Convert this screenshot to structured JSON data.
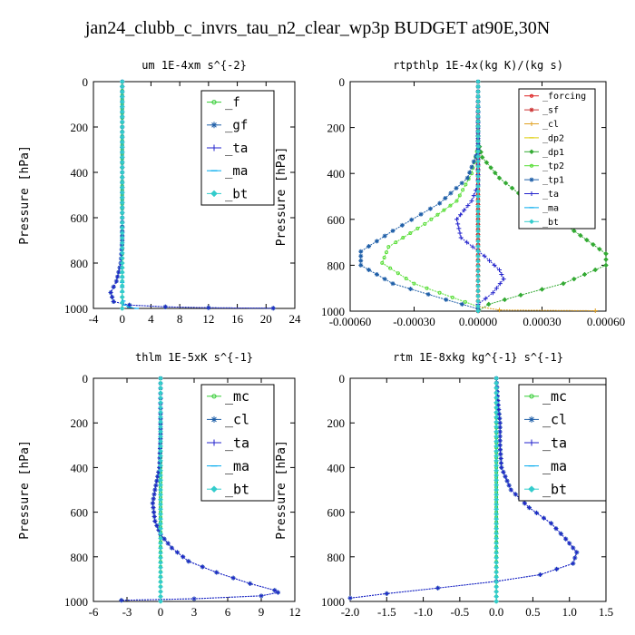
{
  "page": {
    "title": "jan24_clubb_c_invrs_tau_n2_clear_wp3p  BUDGET at90E,30N"
  },
  "chart_data": [
    {
      "type": "line",
      "title": "um  1E-4xm s^{-2}",
      "ylabel": "Pressure [hPa]",
      "xlim": [
        -4,
        24
      ],
      "ylim": [
        1000,
        0
      ],
      "x_ticks": [
        "-4",
        "0",
        "4",
        "8",
        "12",
        "16",
        "20",
        "24"
      ],
      "y_ticks": [
        "0",
        "200",
        "400",
        "600",
        "800",
        "1000"
      ],
      "grid": false,
      "legend_position": "top-right",
      "series": [
        {
          "name": "_f",
          "color": "#33cc33",
          "points": [
            [
              0,
              0
            ],
            [
              0,
              100
            ],
            [
              0,
              200
            ],
            [
              0,
              300
            ],
            [
              0,
              400
            ],
            [
              0,
              500
            ],
            [
              0,
              600
            ],
            [
              0,
              700
            ],
            [
              0,
              800
            ],
            [
              0,
              900
            ],
            [
              0,
              950
            ],
            [
              0,
              1000
            ]
          ]
        },
        {
          "name": "_gf",
          "color": "#1f5fa8",
          "points": [
            [
              0,
              0
            ],
            [
              0,
              200
            ],
            [
              0,
              400
            ],
            [
              0,
              600
            ],
            [
              0,
              700
            ],
            [
              -0.2,
              800
            ],
            [
              -0.8,
              880
            ],
            [
              -1.6,
              930
            ],
            [
              -1.2,
              970
            ],
            [
              1,
              985
            ],
            [
              6,
              993
            ],
            [
              12,
              997
            ],
            [
              21,
              999
            ]
          ]
        },
        {
          "name": "_ta",
          "color": "#2222cc",
          "points": [
            [
              0,
              0
            ],
            [
              0,
              200
            ],
            [
              0,
              400
            ],
            [
              0,
              600
            ],
            [
              0,
              700
            ],
            [
              -0.2,
              800
            ],
            [
              -0.8,
              880
            ],
            [
              -1.6,
              930
            ],
            [
              -1.2,
              970
            ],
            [
              1,
              985
            ],
            [
              6,
              993
            ],
            [
              12,
              997
            ],
            [
              21,
              999
            ]
          ]
        },
        {
          "name": "_ma",
          "color": "#00aaee",
          "points": [
            [
              0,
              0
            ],
            [
              0,
              200
            ],
            [
              0,
              400
            ],
            [
              0,
              600
            ],
            [
              0,
              800
            ],
            [
              0,
              950
            ],
            [
              0.3,
              985
            ],
            [
              1,
              995
            ],
            [
              2,
              1000
            ]
          ]
        },
        {
          "name": "_bt",
          "color": "#33cccc",
          "points": [
            [
              0,
              0
            ],
            [
              0,
              200
            ],
            [
              0,
              400
            ],
            [
              0,
              600
            ],
            [
              0,
              800
            ],
            [
              0,
              900
            ],
            [
              0,
              950
            ],
            [
              0,
              1000
            ]
          ]
        }
      ]
    },
    {
      "type": "line",
      "title": "rtpthlp  1E-4x(kg K)/(kg s)",
      "ylabel": "Pressure [hPa]",
      "xlim": [
        -0.0006,
        0.0006
      ],
      "ylim": [
        1000,
        0
      ],
      "x_ticks": [
        "-0.00060",
        "-0.00030",
        "0.00000",
        "0.00030",
        "0.00060"
      ],
      "y_ticks": [
        "0",
        "200",
        "400",
        "600",
        "800",
        "1000"
      ],
      "grid": false,
      "legend_position": "top-right",
      "series": [
        {
          "name": "_forcing",
          "color": "#dd2222",
          "points": [
            [
              0,
              0
            ],
            [
              0,
              200
            ],
            [
              0,
              400
            ],
            [
              0,
              600
            ],
            [
              0,
              800
            ],
            [
              0,
              1000
            ]
          ]
        },
        {
          "name": "_sf",
          "color": "#cc3333",
          "points": [
            [
              0,
              0
            ],
            [
              0,
              300
            ],
            [
              0,
              600
            ],
            [
              0,
              1000
            ]
          ]
        },
        {
          "name": "_cl",
          "color": "#e0a020",
          "points": [
            [
              0,
              0
            ],
            [
              0,
              500
            ],
            [
              0,
              980
            ],
            [
              0.0001,
              995
            ],
            [
              0.00055,
              998
            ]
          ]
        },
        {
          "name": "_dp2",
          "color": "#ddcc00",
          "points": [
            [
              0,
              0
            ],
            [
              0,
              500
            ],
            [
              0,
              1000
            ]
          ]
        },
        {
          "name": "_dp1",
          "color": "#33aa33",
          "points": [
            [
              0,
              0
            ],
            [
              0,
              260
            ],
            [
              2e-05,
              330
            ],
            [
              0.0001,
              420
            ],
            [
              0.00025,
              530
            ],
            [
              0.00045,
              650
            ],
            [
              0.0006,
              750
            ],
            [
              0.0006,
              800
            ],
            [
              0.0004,
              880
            ],
            [
              0.0002,
              930
            ],
            [
              5e-05,
              970
            ],
            [
              0,
              1000
            ]
          ]
        },
        {
          "name": "_tp2",
          "color": "#55dd33",
          "points": [
            [
              0,
              0
            ],
            [
              0,
              280
            ],
            [
              -3e-05,
              400
            ],
            [
              -0.0001,
              520
            ],
            [
              -0.00025,
              620
            ],
            [
              -0.00042,
              720
            ],
            [
              -0.00045,
              790
            ],
            [
              -0.0003,
              880
            ],
            [
              -0.00012,
              940
            ],
            [
              0,
              980
            ]
          ]
        },
        {
          "name": "_tp1",
          "color": "#1f5fa8",
          "points": [
            [
              0,
              0
            ],
            [
              0,
              300
            ],
            [
              -5e-05,
              420
            ],
            [
              -0.00018,
              530
            ],
            [
              -0.0004,
              650
            ],
            [
              -0.00055,
              740
            ],
            [
              -0.00055,
              800
            ],
            [
              -0.0004,
              880
            ],
            [
              -0.00015,
              950
            ],
            [
              0,
              990
            ]
          ]
        },
        {
          "name": "_ta",
          "color": "#2222cc",
          "points": [
            [
              0,
              0
            ],
            [
              0,
              450
            ],
            [
              -3e-05,
              520
            ],
            [
              -0.0001,
              600
            ],
            [
              -8e-05,
              680
            ],
            [
              3e-05,
              760
            ],
            [
              0.0001,
              820
            ],
            [
              0.00012,
              860
            ],
            [
              7e-05,
              920
            ],
            [
              0,
              970
            ]
          ]
        },
        {
          "name": "_ma",
          "color": "#00aaee",
          "points": [
            [
              0,
              0
            ],
            [
              0,
              500
            ],
            [
              0,
              1000
            ]
          ]
        },
        {
          "name": "_bt",
          "color": "#33cccc",
          "points": [
            [
              0,
              0
            ],
            [
              0,
              500
            ],
            [
              0,
              1000
            ]
          ]
        }
      ]
    },
    {
      "type": "line",
      "title": "thlm  1E-5xK s^{-1}",
      "ylabel": "Pressure [hPa]",
      "xlim": [
        -6,
        12
      ],
      "ylim": [
        1000,
        0
      ],
      "x_ticks": [
        "-6",
        "-3",
        "0",
        "3",
        "6",
        "9",
        "12"
      ],
      "y_ticks": [
        "0",
        "200",
        "400",
        "600",
        "800",
        "1000"
      ],
      "grid": false,
      "legend_position": "top-right",
      "series": [
        {
          "name": "_mc",
          "color": "#33cc33",
          "points": [
            [
              0,
              0
            ],
            [
              0,
              200
            ],
            [
              0,
              400
            ],
            [
              0,
              600
            ],
            [
              0,
              800
            ],
            [
              0,
              1000
            ]
          ]
        },
        {
          "name": "_cl",
          "color": "#1f5fa8",
          "points": [
            [
              0,
              0
            ],
            [
              0,
              250
            ],
            [
              -0.1,
              400
            ],
            [
              -0.5,
              500
            ],
            [
              -0.7,
              560
            ],
            [
              -0.5,
              640
            ],
            [
              0,
              700
            ],
            [
              1,
              760
            ],
            [
              2.5,
              820
            ],
            [
              5,
              870
            ],
            [
              8,
              920
            ],
            [
              10.2,
              950
            ],
            [
              10.5,
              960
            ],
            [
              9,
              975
            ],
            [
              3,
              988
            ],
            [
              -3.5,
              995
            ]
          ]
        },
        {
          "name": "_ta",
          "color": "#2222cc",
          "points": [
            [
              0,
              0
            ],
            [
              0,
              250
            ],
            [
              -0.1,
              400
            ],
            [
              -0.5,
              500
            ],
            [
              -0.7,
              560
            ],
            [
              -0.5,
              640
            ],
            [
              0,
              700
            ],
            [
              1,
              760
            ],
            [
              2.5,
              820
            ],
            [
              5,
              870
            ],
            [
              8,
              920
            ],
            [
              10.2,
              950
            ],
            [
              10.5,
              960
            ],
            [
              9,
              975
            ],
            [
              3,
              988
            ],
            [
              -3.5,
              995
            ]
          ]
        },
        {
          "name": "_ma",
          "color": "#00aaee",
          "points": [
            [
              0,
              0
            ],
            [
              0,
              500
            ],
            [
              0,
              1000
            ]
          ]
        },
        {
          "name": "_bt",
          "color": "#33cccc",
          "points": [
            [
              0,
              0
            ],
            [
              0,
              500
            ],
            [
              0,
              1000
            ]
          ]
        }
      ]
    },
    {
      "type": "line",
      "title": "rtm  1E-8xkg kg^{-1} s^{-1}",
      "ylabel": "Pressure [hPa]",
      "xlim": [
        -2.0,
        1.5
      ],
      "ylim": [
        1000,
        0
      ],
      "x_ticks": [
        "-2.0",
        "-1.5",
        "-1.0",
        "-0.5",
        "0.0",
        "0.5",
        "1.0",
        "1.5"
      ],
      "y_ticks": [
        "0",
        "200",
        "400",
        "600",
        "800",
        "1000"
      ],
      "grid": false,
      "legend_position": "top-right",
      "series": [
        {
          "name": "_mc",
          "color": "#33cc33",
          "points": [
            [
              0,
              0
            ],
            [
              0,
              200
            ],
            [
              0,
              400
            ],
            [
              0,
              600
            ],
            [
              0,
              800
            ],
            [
              0,
              1000
            ]
          ]
        },
        {
          "name": "_cl",
          "color": "#1f5fa8",
          "points": [
            [
              0,
              0
            ],
            [
              0.02,
              100
            ],
            [
              0.05,
              200
            ],
            [
              0.05,
              300
            ],
            [
              0.07,
              400
            ],
            [
              0.2,
              500
            ],
            [
              0.45,
              580
            ],
            [
              0.75,
              650
            ],
            [
              0.95,
              720
            ],
            [
              1.1,
              780
            ],
            [
              1.05,
              830
            ],
            [
              0.6,
              880
            ],
            [
              0,
              910
            ],
            [
              -0.8,
              940
            ],
            [
              -1.5,
              965
            ],
            [
              -2,
              985
            ]
          ]
        },
        {
          "name": "_ta",
          "color": "#2222cc",
          "points": [
            [
              0,
              0
            ],
            [
              0.02,
              100
            ],
            [
              0.05,
              200
            ],
            [
              0.05,
              300
            ],
            [
              0.07,
              400
            ],
            [
              0.2,
              500
            ],
            [
              0.45,
              580
            ],
            [
              0.75,
              650
            ],
            [
              0.95,
              720
            ],
            [
              1.1,
              780
            ],
            [
              1.05,
              830
            ],
            [
              0.6,
              880
            ],
            [
              0,
              910
            ],
            [
              -0.8,
              940
            ],
            [
              -1.5,
              965
            ],
            [
              -2,
              985
            ]
          ]
        },
        {
          "name": "_ma",
          "color": "#00aaee",
          "points": [
            [
              0,
              0
            ],
            [
              0,
              500
            ],
            [
              0,
              1000
            ]
          ]
        },
        {
          "name": "_bt",
          "color": "#33cccc",
          "points": [
            [
              0,
              0
            ],
            [
              0,
              500
            ],
            [
              0,
              1000
            ]
          ]
        }
      ]
    }
  ]
}
